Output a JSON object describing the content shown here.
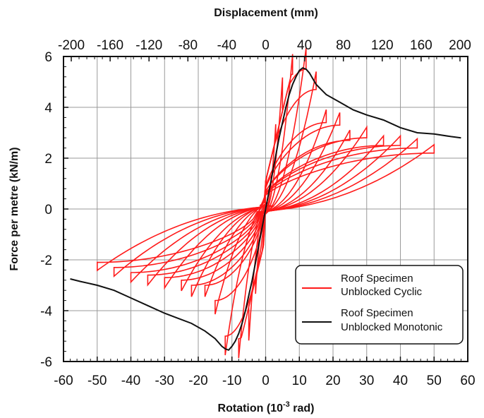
{
  "chart_data": {
    "type": "line",
    "xlabel_bottom_main": "Rotation (10",
    "xlabel_bottom_sup": "-3",
    "xlabel_bottom_tail": " rad)",
    "xlabel_top": "Displacement (mm)",
    "ylabel": "Force per metre (kN/m)",
    "xlim": [
      -60,
      60
    ],
    "ylim": [
      -6,
      6
    ],
    "top_xlim": [
      -208,
      208
    ],
    "x_ticks": [
      "-60",
      "-50",
      "-40",
      "-30",
      "-20",
      "-10",
      "0",
      "10",
      "20",
      "30",
      "40",
      "50",
      "60"
    ],
    "top_ticks": [
      "-200",
      "-160",
      "-120",
      "-80",
      "-40",
      "0",
      "40",
      "80",
      "120",
      "160",
      "200"
    ],
    "y_ticks": [
      "-6",
      "-4",
      "-2",
      "0",
      "2",
      "4",
      "6"
    ],
    "grid": true,
    "legend_position": "bottom-right",
    "colors": {
      "cyclic": "#ff1a1a",
      "monotonic": "#111111"
    },
    "series": [
      {
        "name": "Roof Specimen Unblocked Cyclic",
        "legend_line1": "Roof Specimen",
        "legend_line2": "Unblocked Cyclic",
        "loops": [
          {
            "amp": 3,
            "fpos": 2.9,
            "fneg": -2.9
          },
          {
            "amp": 5,
            "fpos": 4.5,
            "fneg": -4.5
          },
          {
            "amp": 8,
            "fpos": 5.3,
            "fneg": -5.1
          },
          {
            "amp": 12,
            "fpos": 5.5,
            "fneg": -5.0
          },
          {
            "amp": 15,
            "fpos": 4.7,
            "fneg": -3.6
          },
          {
            "amp": 18,
            "fpos": 3.4,
            "fneg": -3.0
          },
          {
            "amp": 22,
            "fpos": 3.3,
            "fneg": -3.0
          },
          {
            "amp": 25,
            "fpos": 2.7,
            "fneg": -2.8
          },
          {
            "amp": 30,
            "fpos": 2.8,
            "fneg": -2.7
          },
          {
            "amp": 35,
            "fpos": 2.5,
            "fneg": -2.6
          },
          {
            "amp": 40,
            "fpos": 2.5,
            "fneg": -2.5
          },
          {
            "amp": 45,
            "fpos": 2.4,
            "fneg": -2.3
          },
          {
            "amp": 50,
            "fpos": 2.2,
            "fneg": -2.1
          }
        ]
      },
      {
        "name": "Roof Specimen Unblocked Monotonic",
        "legend_line1": "Roof Specimen",
        "legend_line2": "Unblocked Monotonic",
        "positive_branch": {
          "x": [
            0,
            1,
            2,
            3,
            4,
            5,
            6,
            7,
            8,
            9,
            10,
            11,
            12,
            13,
            15,
            18,
            22,
            26,
            30,
            35,
            40,
            45,
            50,
            55,
            58
          ],
          "y": [
            0,
            0.7,
            1.4,
            2.1,
            2.8,
            3.4,
            4.0,
            4.5,
            4.9,
            5.2,
            5.45,
            5.55,
            5.5,
            5.35,
            4.9,
            4.5,
            4.2,
            3.9,
            3.7,
            3.5,
            3.2,
            3.0,
            2.95,
            2.85,
            2.8
          ]
        },
        "negative_branch": {
          "x": [
            0,
            -1,
            -2,
            -3,
            -4,
            -5,
            -6,
            -7,
            -8,
            -9,
            -10,
            -11,
            -12,
            -13,
            -15,
            -18,
            -22,
            -26,
            -30,
            -35,
            -40,
            -45,
            -50,
            -55,
            -58
          ],
          "y": [
            0,
            -0.7,
            -1.4,
            -2.1,
            -2.8,
            -3.4,
            -4.0,
            -4.5,
            -4.9,
            -5.2,
            -5.4,
            -5.55,
            -5.5,
            -5.4,
            -5.1,
            -4.8,
            -4.5,
            -4.3,
            -4.1,
            -3.8,
            -3.5,
            -3.2,
            -3.0,
            -2.85,
            -2.75
          ]
        }
      }
    ]
  }
}
